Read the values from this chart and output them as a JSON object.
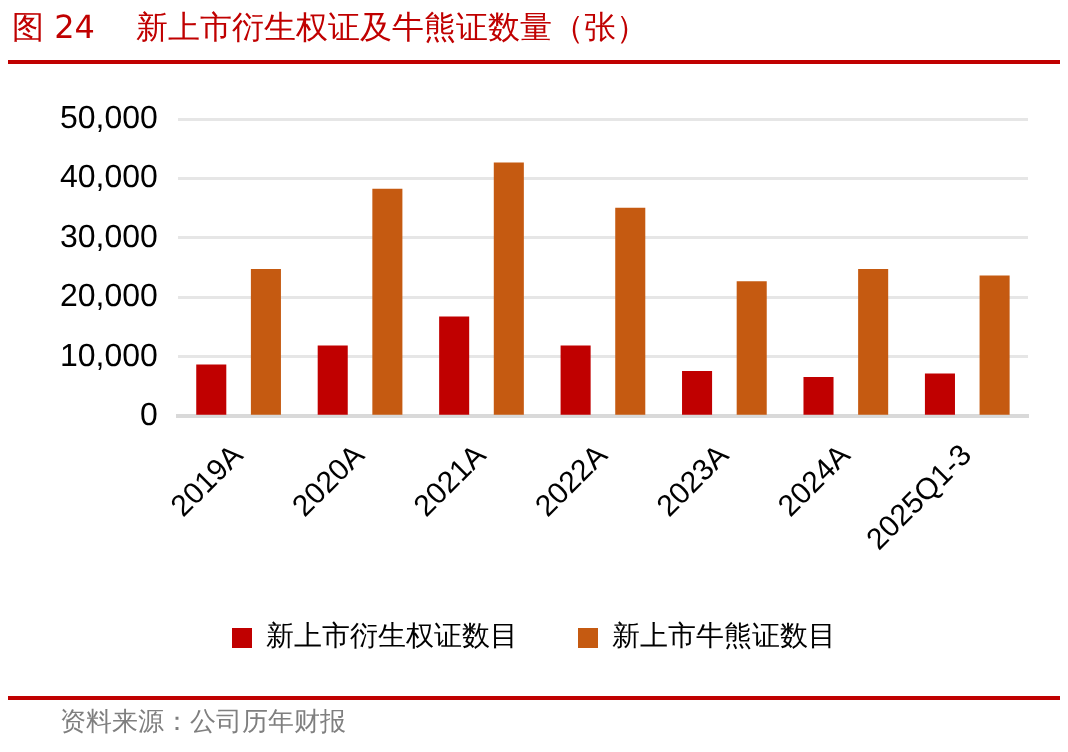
{
  "chart_data": {
    "type": "bar",
    "title": "图 24    新上市衍生权证及牛熊证数量（张）",
    "categories": [
      "2019A",
      "2020A",
      "2021A",
      "2022A",
      "2023A",
      "2024A",
      "2025Q1-3"
    ],
    "series": [
      {
        "name": "新上市衍生权证数目",
        "color": "#c00000",
        "values": [
          8700,
          11900,
          16800,
          11900,
          7600,
          6600,
          7200
        ]
      },
      {
        "name": "新上市牛熊证数目",
        "color": "#c55a11",
        "values": [
          24800,
          38300,
          42700,
          35100,
          22700,
          24800,
          23700
        ]
      }
    ],
    "ylim": [
      0,
      50000
    ],
    "yticks": [
      {
        "value": 0,
        "label": "0"
      },
      {
        "value": 10000,
        "label": "10,000"
      },
      {
        "value": 20000,
        "label": "20,000"
      },
      {
        "value": 30000,
        "label": "30,000"
      },
      {
        "value": 40000,
        "label": "40,000"
      },
      {
        "value": 50000,
        "label": "50,000"
      }
    ],
    "grid": "y",
    "legend": "bottom",
    "annotations": [
      "资料来源：公司历年财报"
    ]
  }
}
